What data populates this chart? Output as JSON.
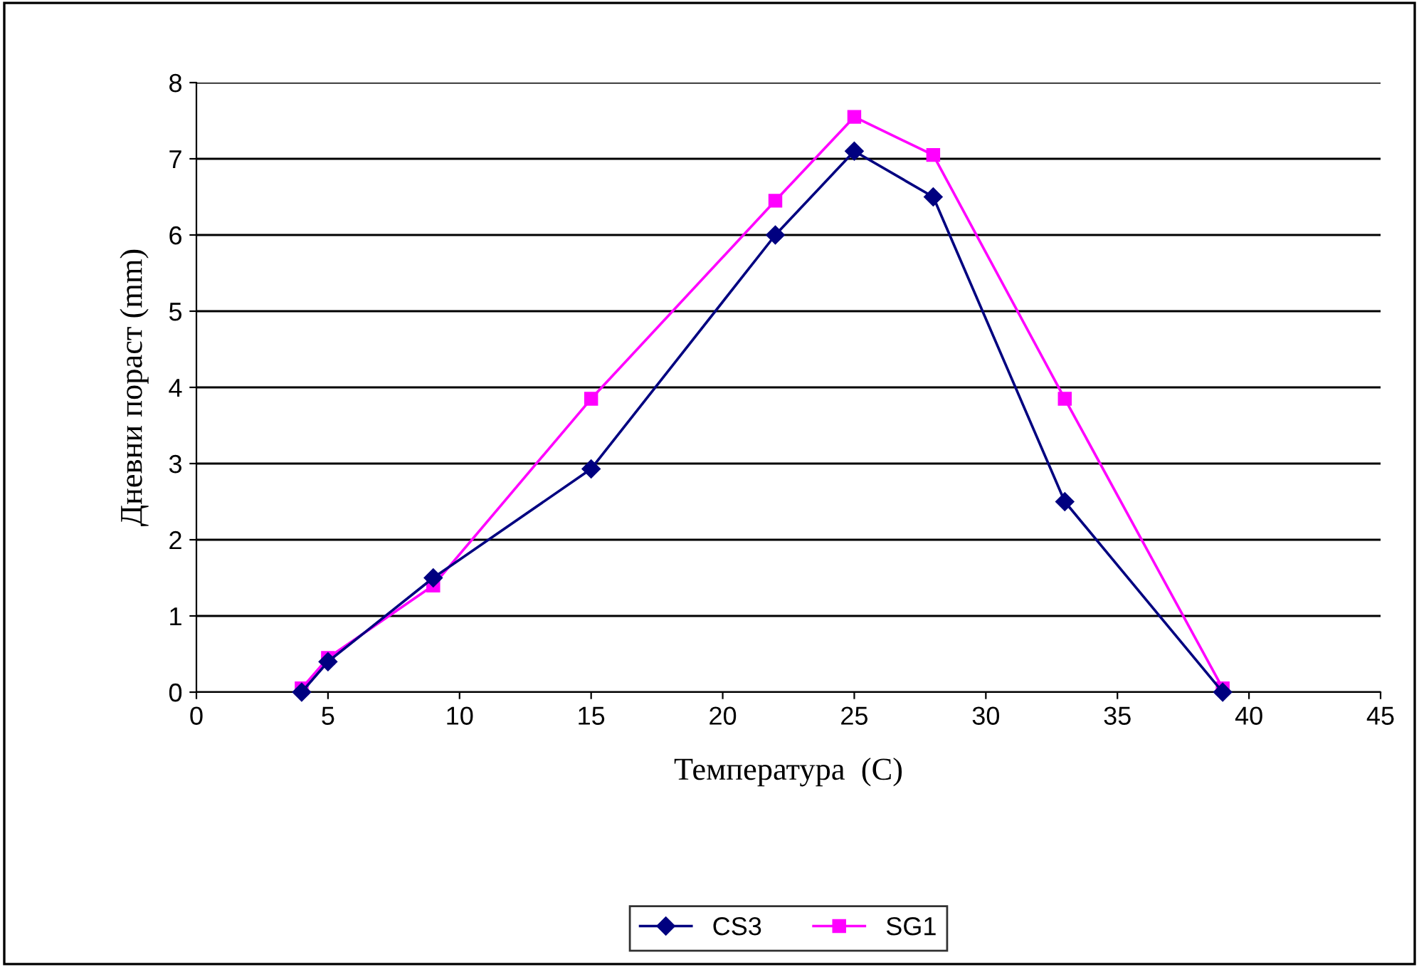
{
  "chart_data": {
    "type": "line",
    "xlabel": "Температура  (C)",
    "ylabel": "Дневни пораст (mm)",
    "xlim": [
      0,
      45
    ],
    "xticks": [
      0,
      5,
      10,
      15,
      20,
      25,
      30,
      35,
      40,
      45
    ],
    "ylim": [
      0,
      8
    ],
    "yticks": [
      0,
      1,
      2,
      3,
      4,
      5,
      6,
      7,
      8
    ],
    "grid": "y",
    "legend": "bottom",
    "series": [
      {
        "name": "CS3",
        "color": "#000080",
        "marker": "diamond",
        "x": [
          4,
          5,
          9,
          15,
          22,
          25,
          28,
          33,
          39
        ],
        "values": [
          0.0,
          0.4,
          1.5,
          2.93,
          6.0,
          7.1,
          6.5,
          2.5,
          0.0
        ]
      },
      {
        "name": "SG1",
        "color": "#ff00ff",
        "marker": "square",
        "x": [
          4,
          5,
          9,
          15,
          22,
          25,
          28,
          33,
          39
        ],
        "values": [
          0.05,
          0.45,
          1.4,
          3.85,
          6.45,
          7.55,
          7.05,
          3.85,
          0.05
        ]
      }
    ]
  }
}
